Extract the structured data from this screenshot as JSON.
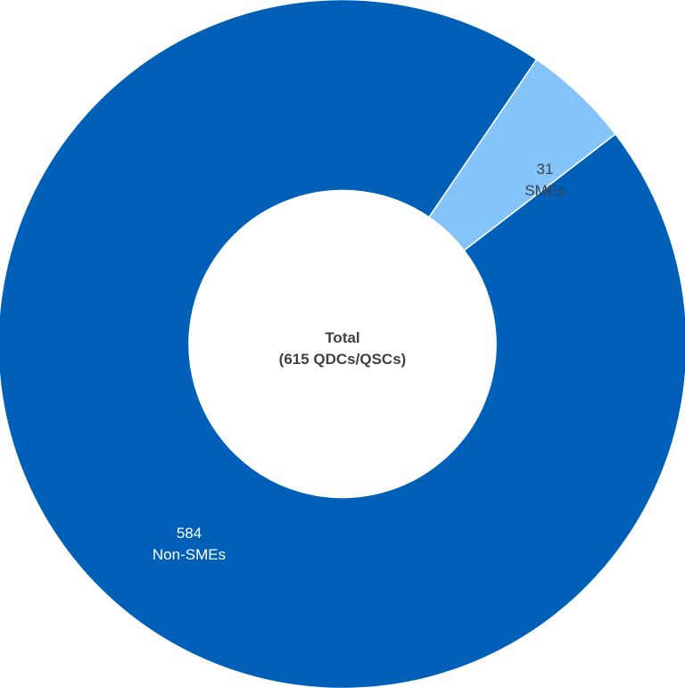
{
  "chart_data": {
    "type": "pie",
    "variant": "donut",
    "center_label": {
      "line1": "Total",
      "line2": "(615 QDCs/QSCs)"
    },
    "slices": [
      {
        "name": "SMEs",
        "value": 31,
        "value_label": "31",
        "color": "#85c3fb",
        "label_color": "#404040"
      },
      {
        "name": "Non-SMEs",
        "value": 584,
        "value_label": "584",
        "color": "#0060b8",
        "label_color": "#ffffff"
      }
    ],
    "separator_color": "#ffffff",
    "center_label_color": "#404040"
  }
}
